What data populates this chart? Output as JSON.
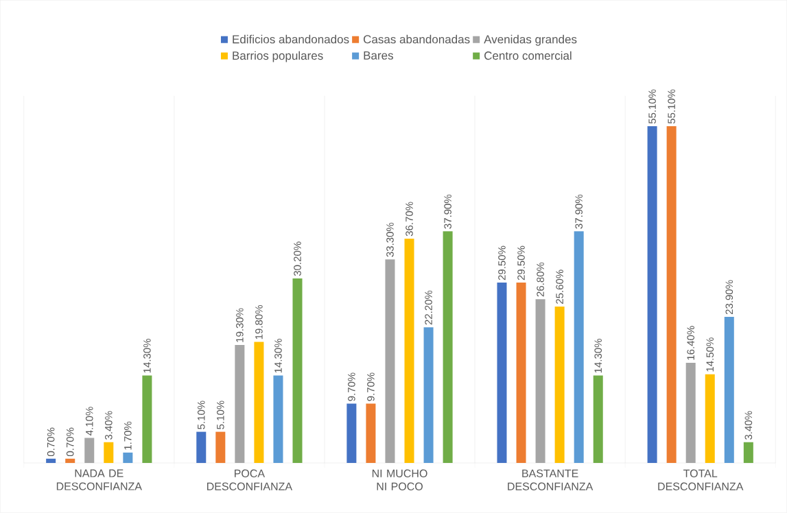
{
  "chart_data": {
    "type": "bar",
    "categories": [
      "NADA DE DESCONFIANZA",
      "POCA DESCONFIANZA",
      "NI MUCHO NI POCO",
      "BASTANTE DESCONFIANZA",
      "TOTAL DESCONFIANZA"
    ],
    "series": [
      {
        "name": "Edificios abandonados",
        "color": "#4472c4",
        "values": [
          0.7,
          5.1,
          9.7,
          29.5,
          55.1
        ],
        "value_labels": [
          "0.70%",
          "5.10%",
          "9.70%",
          "29.50%",
          "55.10%"
        ]
      },
      {
        "name": "Casas abandonadas",
        "color": "#ed7d31",
        "values": [
          0.7,
          5.1,
          9.7,
          29.5,
          55.1
        ],
        "value_labels": [
          "0.70%",
          "5.10%",
          "9.70%",
          "29.50%",
          "55.10%"
        ]
      },
      {
        "name": "Avenidas grandes",
        "color": "#a5a5a5",
        "values": [
          4.1,
          19.3,
          33.3,
          26.8,
          16.4
        ],
        "value_labels": [
          "4.10%",
          "19.30%",
          "33.30%",
          "26.80%",
          "16.40%"
        ]
      },
      {
        "name": "Barrios populares",
        "color": "#ffc000",
        "values": [
          3.4,
          19.8,
          36.7,
          25.6,
          14.5
        ],
        "value_labels": [
          "3.40%",
          "19.80%",
          "36.70%",
          "25.60%",
          "14.50%"
        ]
      },
      {
        "name": "Bares",
        "color": "#5b9bd5",
        "values": [
          1.7,
          14.3,
          22.2,
          37.9,
          23.9
        ],
        "value_labels": [
          "1.70%",
          "14.30%",
          "22.20%",
          "37.90%",
          "23.90%"
        ]
      },
      {
        "name": "Centro comercial",
        "color": "#70ad47",
        "values": [
          14.3,
          30.2,
          37.9,
          14.3,
          3.4
        ],
        "value_labels": [
          "14.30%",
          "30.20%",
          "37.90%",
          "14.30%",
          "3.40%"
        ]
      }
    ],
    "grid": "x",
    "legend": "top"
  }
}
